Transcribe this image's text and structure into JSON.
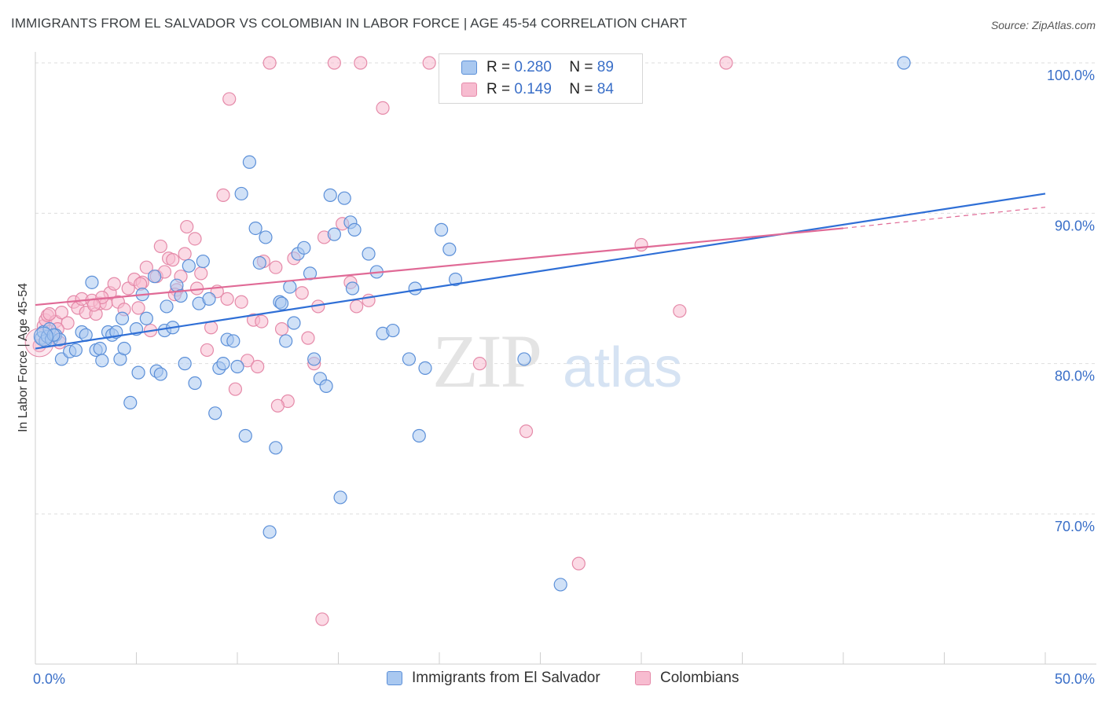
{
  "header": {
    "title": "IMMIGRANTS FROM EL SALVADOR VS COLOMBIAN IN LABOR FORCE | AGE 45-54 CORRELATION CHART",
    "source": "Source: ZipAtlas.com"
  },
  "watermark": {
    "zip": "ZIP",
    "atlas": "atlas"
  },
  "legend": {
    "r_label": "R =",
    "n_label": "N =",
    "blue": {
      "r": "0.280",
      "n": "89"
    },
    "pink": {
      "r": "0.149",
      "n": "84"
    }
  },
  "bottom_legend": {
    "blue_label": "Immigrants from El Salvador",
    "pink_label": "Colombians"
  },
  "colors": {
    "blue_fill": "#a9c8f0",
    "blue_stroke": "#5b8fd8",
    "blue_line": "#2f6fd6",
    "pink_fill": "#f7bcd0",
    "pink_stroke": "#e58aa9",
    "pink_line": "#e06a96",
    "tick_text": "#3a6fc8",
    "grid": "#dddddd"
  },
  "chart_data": {
    "type": "scatter",
    "title": "IMMIGRANTS FROM EL SALVADOR VS COLOMBIAN IN LABOR FORCE | AGE 45-54 CORRELATION CHART",
    "xlabel": "",
    "ylabel": "In Labor Force | Age 45-54",
    "xlim": [
      0,
      50
    ],
    "ylim": [
      60,
      100
    ],
    "x_tick_labels": [
      "0.0%",
      "50.0%"
    ],
    "y_ticks": [
      70,
      80,
      90,
      100
    ],
    "y_tick_labels": [
      "70.0%",
      "80.0%",
      "90.0%",
      "100.0%"
    ],
    "grid": true,
    "legend_position": "top-center",
    "series": [
      {
        "name": "Immigrants from El Salvador",
        "r": 0.28,
        "n": 89,
        "trend": {
          "x0": 0,
          "y0": 81.0,
          "x1": 50,
          "y1": 91.3
        },
        "points": [
          [
            0.3,
            81.7
          ],
          [
            0.4,
            82.1
          ],
          [
            0.5,
            81.5
          ],
          [
            0.6,
            81.8
          ],
          [
            0.7,
            82.3
          ],
          [
            0.8,
            81.6
          ],
          [
            1.0,
            81.9
          ],
          [
            1.2,
            81.6
          ],
          [
            1.3,
            80.3
          ],
          [
            1.7,
            80.8
          ],
          [
            2.0,
            80.9
          ],
          [
            2.3,
            82.1
          ],
          [
            2.5,
            81.9
          ],
          [
            2.8,
            85.4
          ],
          [
            3.0,
            80.9
          ],
          [
            3.2,
            81.0
          ],
          [
            3.3,
            80.2
          ],
          [
            3.6,
            82.1
          ],
          [
            3.8,
            81.9
          ],
          [
            4.0,
            82.1
          ],
          [
            4.2,
            80.3
          ],
          [
            4.3,
            83.0
          ],
          [
            4.4,
            81.0
          ],
          [
            4.7,
            77.4
          ],
          [
            5.0,
            82.3
          ],
          [
            5.1,
            79.4
          ],
          [
            5.3,
            84.6
          ],
          [
            5.5,
            83.0
          ],
          [
            5.9,
            85.8
          ],
          [
            6.0,
            79.5
          ],
          [
            6.2,
            79.3
          ],
          [
            6.4,
            82.2
          ],
          [
            6.5,
            83.8
          ],
          [
            6.8,
            82.4
          ],
          [
            7.0,
            85.2
          ],
          [
            7.2,
            84.5
          ],
          [
            7.4,
            80.0
          ],
          [
            7.6,
            86.5
          ],
          [
            7.9,
            78.7
          ],
          [
            8.1,
            84.0
          ],
          [
            8.3,
            86.8
          ],
          [
            8.6,
            84.3
          ],
          [
            8.9,
            76.7
          ],
          [
            9.1,
            79.7
          ],
          [
            9.3,
            80.0
          ],
          [
            9.5,
            81.6
          ],
          [
            9.8,
            81.5
          ],
          [
            10.0,
            79.8
          ],
          [
            10.2,
            91.3
          ],
          [
            10.4,
            75.2
          ],
          [
            10.6,
            93.4
          ],
          [
            10.9,
            89.0
          ],
          [
            11.1,
            86.7
          ],
          [
            11.4,
            88.4
          ],
          [
            11.6,
            68.8
          ],
          [
            11.9,
            74.4
          ],
          [
            12.1,
            84.1
          ],
          [
            12.4,
            81.5
          ],
          [
            12.6,
            85.1
          ],
          [
            12.8,
            82.7
          ],
          [
            13.0,
            87.3
          ],
          [
            13.3,
            87.7
          ],
          [
            13.6,
            86.0
          ],
          [
            13.8,
            80.3
          ],
          [
            14.1,
            79.0
          ],
          [
            14.4,
            78.5
          ],
          [
            14.6,
            91.2
          ],
          [
            14.8,
            88.6
          ],
          [
            15.1,
            71.1
          ],
          [
            15.3,
            91.0
          ],
          [
            15.6,
            89.4
          ],
          [
            15.8,
            88.9
          ],
          [
            16.5,
            87.3
          ],
          [
            16.9,
            86.1
          ],
          [
            17.2,
            82.0
          ],
          [
            17.7,
            82.2
          ],
          [
            18.5,
            80.3
          ],
          [
            18.8,
            85.0
          ],
          [
            19.0,
            75.2
          ],
          [
            19.3,
            79.7
          ],
          [
            20.1,
            88.9
          ],
          [
            20.5,
            87.6
          ],
          [
            20.8,
            85.6
          ],
          [
            24.2,
            80.3
          ],
          [
            26.0,
            65.3
          ],
          [
            0.9,
            81.9
          ],
          [
            15.7,
            85.0
          ],
          [
            12.2,
            84.0
          ],
          [
            43.0,
            100.0
          ]
        ]
      },
      {
        "name": "Colombians",
        "r": 0.149,
        "n": 84,
        "trend": {
          "x0": 0,
          "y0": 83.9,
          "x1": 40,
          "y1": 89.0
        },
        "trend_dashed": {
          "x0": 40,
          "y0": 89.0,
          "x1": 50,
          "y1": 90.4
        },
        "points": [
          [
            0.2,
            81.2
          ],
          [
            0.4,
            82.5
          ],
          [
            0.5,
            82.9
          ],
          [
            0.6,
            83.2
          ],
          [
            0.8,
            81.8
          ],
          [
            1.0,
            82.8
          ],
          [
            1.2,
            81.4
          ],
          [
            1.3,
            83.4
          ],
          [
            1.6,
            82.7
          ],
          [
            1.9,
            84.1
          ],
          [
            2.1,
            83.7
          ],
          [
            2.3,
            84.3
          ],
          [
            2.5,
            83.4
          ],
          [
            2.8,
            84.2
          ],
          [
            3.0,
            83.3
          ],
          [
            3.2,
            84.0
          ],
          [
            3.5,
            84.0
          ],
          [
            3.7,
            84.7
          ],
          [
            3.9,
            85.3
          ],
          [
            4.1,
            84.1
          ],
          [
            4.4,
            83.6
          ],
          [
            4.6,
            85.0
          ],
          [
            4.9,
            85.6
          ],
          [
            5.1,
            83.7
          ],
          [
            5.3,
            85.4
          ],
          [
            5.5,
            86.4
          ],
          [
            5.7,
            82.2
          ],
          [
            6.0,
            85.8
          ],
          [
            6.2,
            87.8
          ],
          [
            6.4,
            86.1
          ],
          [
            6.6,
            87.0
          ],
          [
            6.8,
            86.9
          ],
          [
            7.0,
            84.9
          ],
          [
            7.2,
            85.8
          ],
          [
            7.4,
            87.3
          ],
          [
            7.5,
            89.1
          ],
          [
            7.9,
            88.3
          ],
          [
            8.0,
            85.0
          ],
          [
            8.2,
            86.0
          ],
          [
            8.5,
            80.9
          ],
          [
            8.7,
            82.4
          ],
          [
            9.0,
            84.8
          ],
          [
            9.3,
            91.2
          ],
          [
            9.6,
            97.6
          ],
          [
            9.9,
            78.3
          ],
          [
            10.2,
            84.1
          ],
          [
            10.5,
            80.2
          ],
          [
            10.8,
            82.9
          ],
          [
            11.0,
            79.8
          ],
          [
            11.3,
            86.8
          ],
          [
            11.6,
            100.0
          ],
          [
            11.9,
            86.4
          ],
          [
            12.2,
            82.3
          ],
          [
            12.5,
            77.5
          ],
          [
            12.8,
            87.0
          ],
          [
            13.2,
            84.7
          ],
          [
            13.5,
            81.7
          ],
          [
            13.8,
            80.0
          ],
          [
            14.0,
            83.8
          ],
          [
            14.3,
            88.4
          ],
          [
            14.8,
            100.0
          ],
          [
            15.2,
            89.3
          ],
          [
            15.6,
            85.4
          ],
          [
            15.9,
            83.8
          ],
          [
            16.1,
            100.0
          ],
          [
            16.5,
            84.2
          ],
          [
            17.2,
            97.0
          ],
          [
            19.5,
            100.0
          ],
          [
            22.0,
            80.0
          ],
          [
            24.3,
            75.5
          ],
          [
            26.9,
            66.7
          ],
          [
            30.0,
            87.9
          ],
          [
            31.9,
            83.5
          ],
          [
            34.2,
            100.0
          ],
          [
            12.0,
            77.2
          ],
          [
            9.5,
            84.3
          ],
          [
            6.9,
            84.6
          ],
          [
            5.2,
            85.3
          ],
          [
            3.3,
            84.4
          ],
          [
            2.9,
            83.9
          ],
          [
            1.1,
            82.3
          ],
          [
            0.7,
            83.3
          ],
          [
            14.2,
            63.0
          ],
          [
            11.2,
            82.8
          ]
        ]
      }
    ]
  }
}
